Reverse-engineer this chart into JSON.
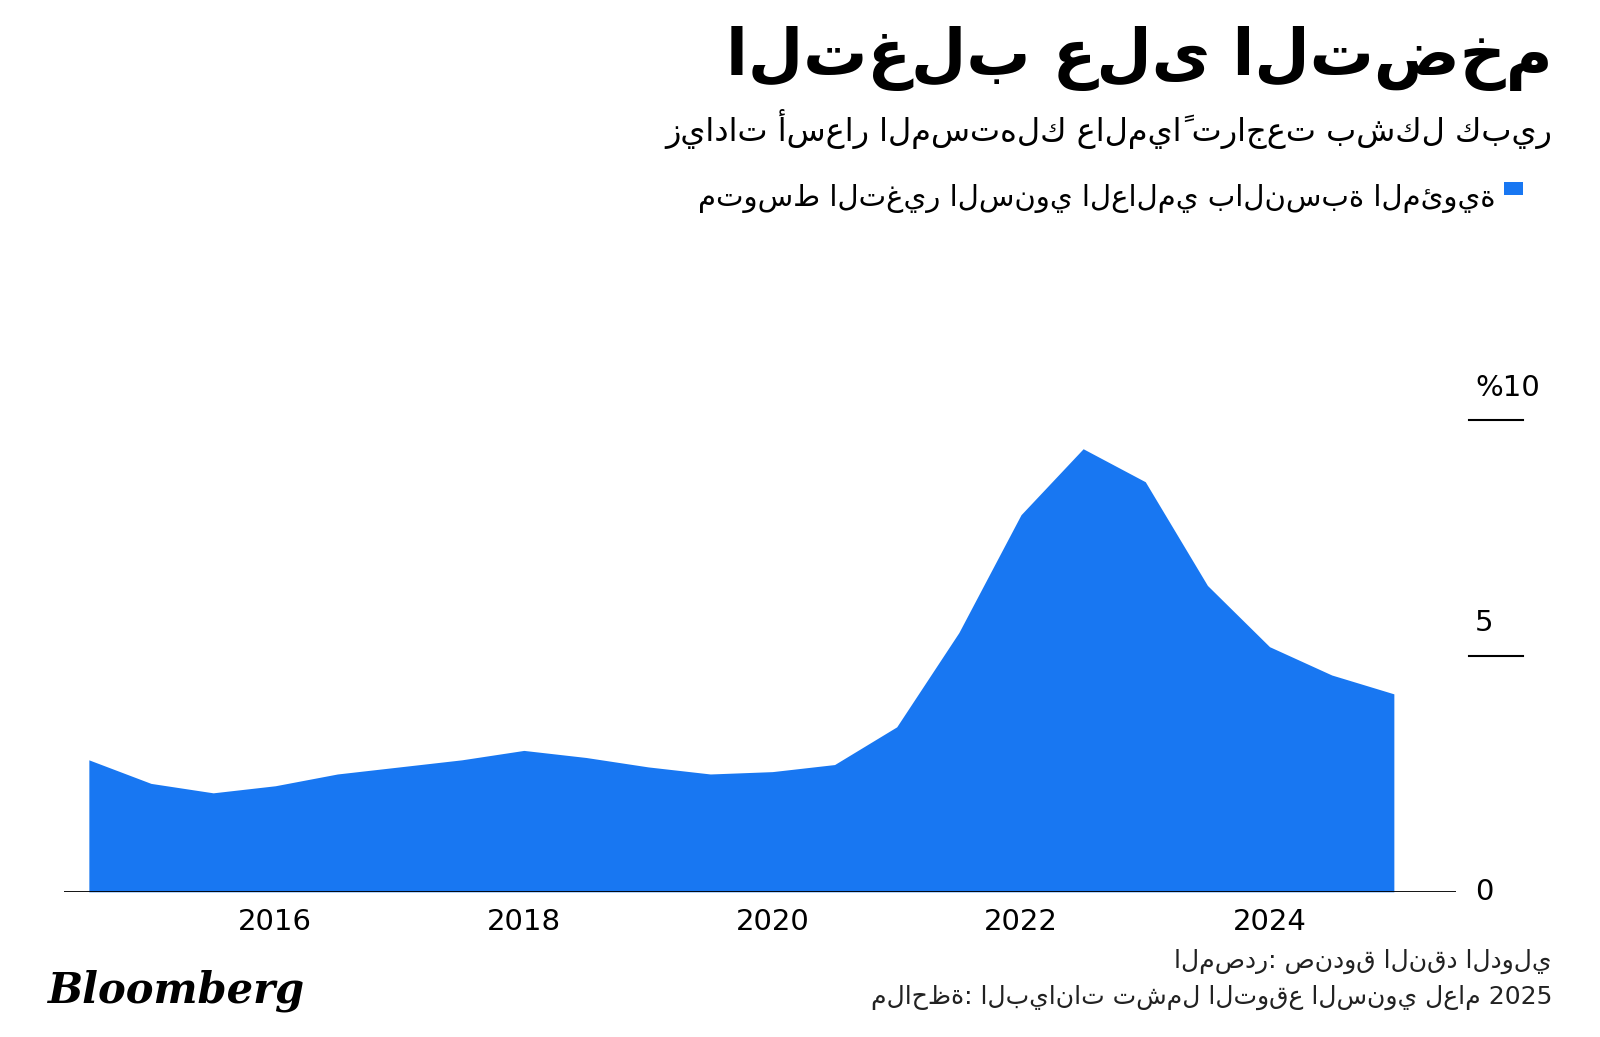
{
  "title": "التغلب على التضخم",
  "subtitle": "زيادات أسعار المستهلك عالمياً تراجعت بشكل كبير",
  "legend_label": "متوسط التغير السنوي العالمي بالنسبة المئوية",
  "source_label": "المصدر: صندوق النقد الدولي",
  "note_label": "ملاحظة: البيانات تشمل التوقع السنوي لعام 2025",
  "bloomberg_label": "Bloomberg",
  "fill_color": "#1877F2",
  "background_color": "#ffffff",
  "years": [
    2014.5,
    2015.0,
    2015.5,
    2016.0,
    2016.5,
    2017.0,
    2017.5,
    2018.0,
    2018.5,
    2019.0,
    2019.5,
    2020.0,
    2020.5,
    2021.0,
    2021.5,
    2022.0,
    2022.5,
    2023.0,
    2023.5,
    2024.0,
    2024.5,
    2025.0
  ],
  "values": [
    2.8,
    2.3,
    2.1,
    2.25,
    2.5,
    2.65,
    2.8,
    3.0,
    2.85,
    2.65,
    2.5,
    2.55,
    2.7,
    3.5,
    5.5,
    8.0,
    9.4,
    8.7,
    6.5,
    5.2,
    4.6,
    4.2
  ],
  "xlim_left": 2014.3,
  "xlim_right": 2025.5,
  "ylim_bottom": 0,
  "ylim_top": 11,
  "xtick_years": [
    2016,
    2018,
    2020,
    2022,
    2024
  ],
  "ytick_values": [
    0,
    5,
    10
  ],
  "ytick_labels": [
    "0",
    "5",
    "%10"
  ]
}
